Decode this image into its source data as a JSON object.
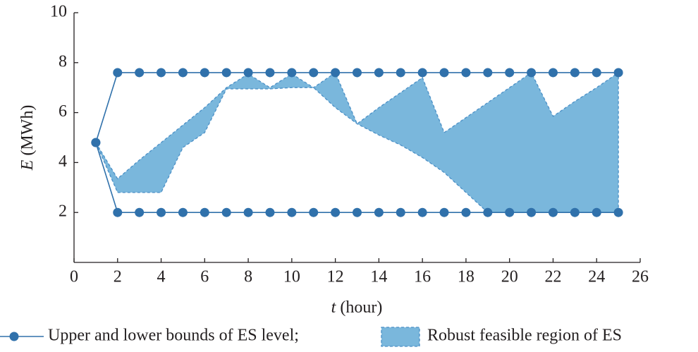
{
  "chart_data": {
    "type": "line",
    "x_label_var": "t",
    "x_label_unit": "(hour)",
    "y_label_var": "E",
    "y_label_unit": "(MWh)",
    "xlim": [
      0,
      26
    ],
    "xticks": [
      0,
      2,
      4,
      6,
      8,
      10,
      12,
      14,
      16,
      18,
      20,
      22,
      24,
      26
    ],
    "ylim": [
      0,
      10
    ],
    "yticks": [
      2,
      4,
      6,
      8,
      10
    ],
    "x": [
      1,
      2,
      3,
      4,
      5,
      6,
      7,
      8,
      9,
      10,
      11,
      12,
      13,
      14,
      15,
      16,
      17,
      18,
      19,
      20,
      21,
      22,
      23,
      24,
      25
    ],
    "bounds": {
      "name": "Upper and lower bounds of ES level;",
      "color": "#3071ab",
      "upper": [
        4.8,
        7.6,
        7.6,
        7.6,
        7.6,
        7.6,
        7.6,
        7.6,
        7.6,
        7.6,
        7.6,
        7.6,
        7.6,
        7.6,
        7.6,
        7.6,
        7.6,
        7.6,
        7.6,
        7.6,
        7.6,
        7.6,
        7.6,
        7.6,
        7.6
      ],
      "lower": [
        4.8,
        2.0,
        2.0,
        2.0,
        2.0,
        2.0,
        2.0,
        2.0,
        2.0,
        2.0,
        2.0,
        2.0,
        2.0,
        2.0,
        2.0,
        2.0,
        2.0,
        2.0,
        2.0,
        2.0,
        2.0,
        2.0,
        2.0,
        2.0,
        2.0
      ]
    },
    "region": {
      "name": "Robust feasible region of ES",
      "color": "#7ab7dc",
      "edge_color": "#4a8fc6",
      "upper": [
        4.8,
        3.35,
        4.1,
        4.8,
        5.5,
        6.2,
        7.0,
        7.55,
        7.0,
        7.55,
        7.0,
        7.6,
        5.55,
        6.2,
        6.8,
        7.4,
        5.2,
        5.8,
        6.4,
        7.0,
        7.6,
        5.85,
        6.45,
        7.0,
        7.6
      ],
      "lower": [
        4.8,
        2.8,
        2.8,
        2.8,
        4.6,
        5.2,
        6.95,
        6.95,
        6.95,
        7.0,
        7.0,
        6.2,
        5.55,
        5.1,
        4.7,
        4.2,
        3.6,
        2.8,
        2.0,
        2.0,
        2.0,
        2.0,
        2.0,
        2.0,
        2.0
      ]
    }
  }
}
